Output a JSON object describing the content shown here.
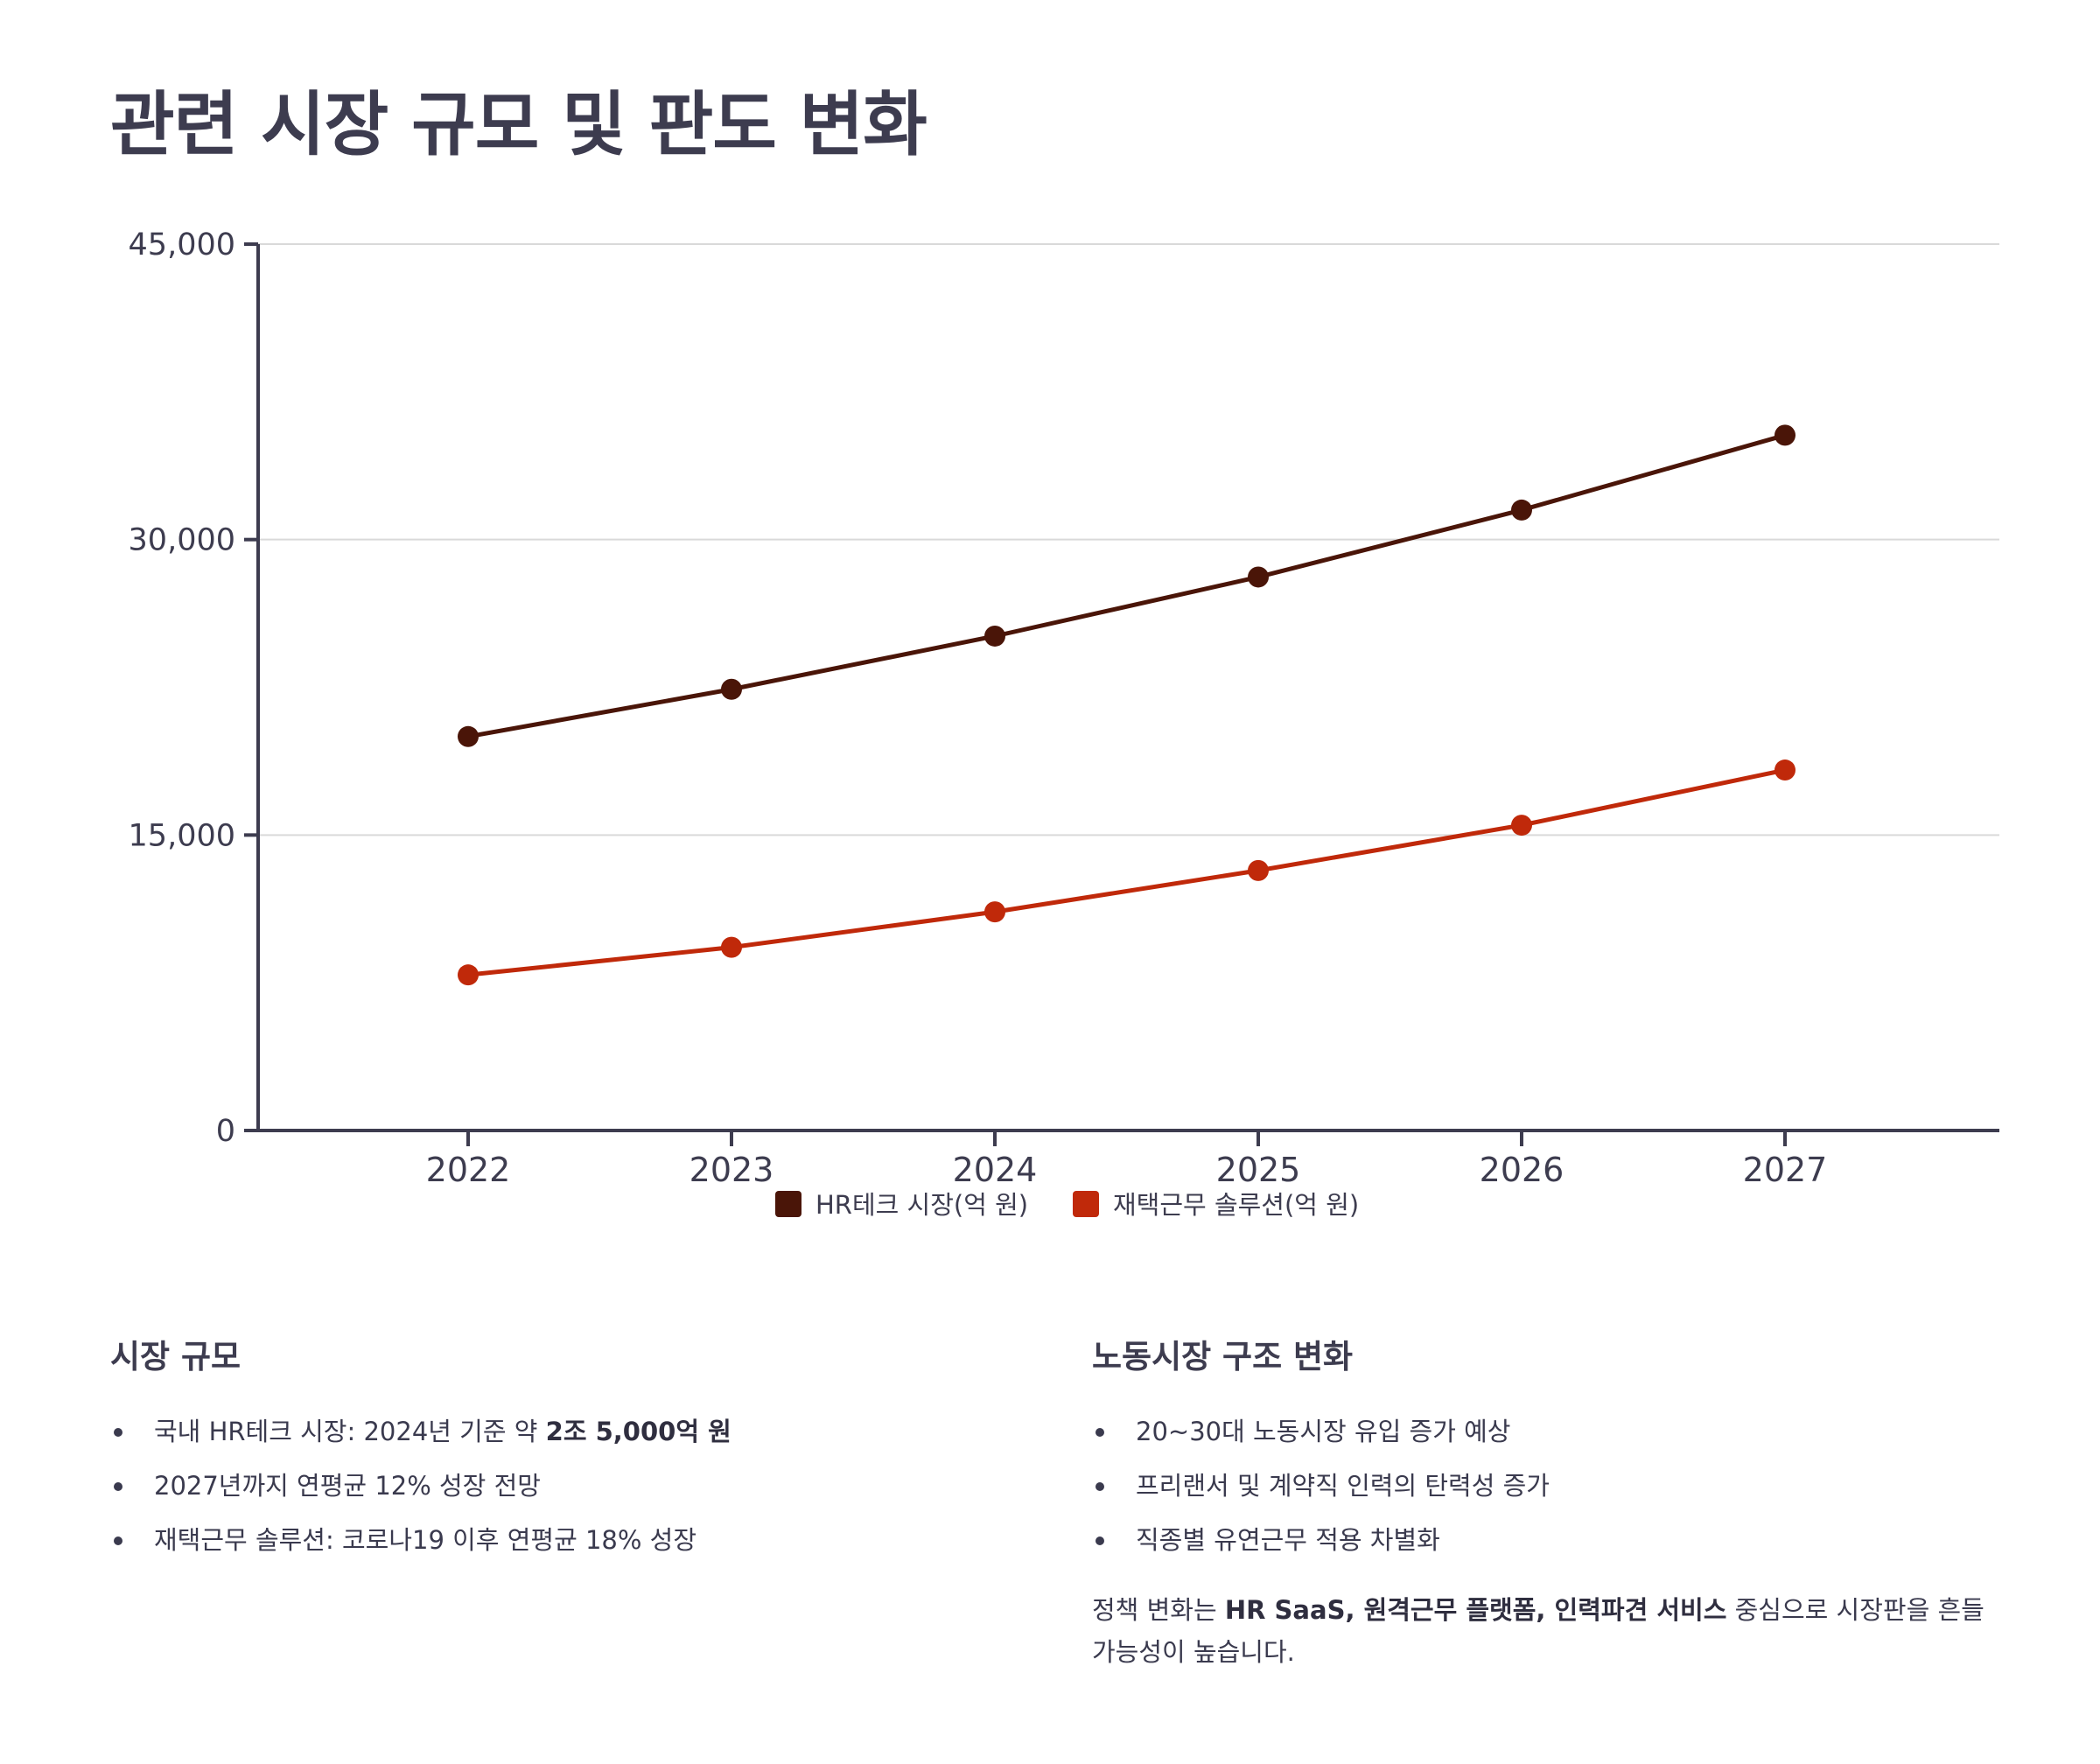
{
  "title": "관련 시장 규모 및 판도 변화",
  "colors": {
    "hrtech": "#4a1508",
    "remote": "#c0290a",
    "axis": "#3d3c4f",
    "grid": "#d9d9d9",
    "text": "#3a3a4e"
  },
  "chart_data": {
    "type": "line",
    "categories": [
      "2022",
      "2023",
      "2024",
      "2025",
      "2026",
      "2027"
    ],
    "series": [
      {
        "name": "HR테크 시장(억 원)",
        "values": [
          20000,
          22400,
          25100,
          28100,
          31500,
          35300
        ],
        "color": "#4a1508"
      },
      {
        "name": "재택근무 솔루션(억 원)",
        "values": [
          7900,
          9300,
          11100,
          13200,
          15500,
          18300
        ],
        "color": "#c0290a"
      }
    ],
    "ylim": [
      0,
      45000
    ],
    "yticks": [
      0,
      15000,
      30000,
      45000
    ],
    "ytick_labels": [
      "0",
      "15,000",
      "30,000",
      "45,000"
    ],
    "grid": true,
    "legend_position": "bottom-center"
  },
  "left_section": {
    "heading": "시장 규모",
    "items": [
      {
        "prefix": "국내 HR테크 시장: 2024년 기준 약 ",
        "bold": "2조 5,000억 원",
        "suffix": ""
      },
      {
        "prefix": "2027년까지 연평균 12% 성장 전망",
        "bold": "",
        "suffix": ""
      },
      {
        "prefix": "재택근무 솔루션: 코로나19 이후 연평균 18% 성장",
        "bold": "",
        "suffix": ""
      }
    ]
  },
  "right_section": {
    "heading": "노동시장 구조 변화",
    "items": [
      {
        "prefix": "20~30대 노동시장 유입 증가 예상",
        "bold": "",
        "suffix": ""
      },
      {
        "prefix": "프리랜서 및 계약직 인력의 탄력성 증가",
        "bold": "",
        "suffix": ""
      },
      {
        "prefix": "직종별 유연근무 적용 차별화",
        "bold": "",
        "suffix": ""
      }
    ],
    "note": {
      "prefix": "정책 변화는 ",
      "bold": "HR SaaS, 원격근무 플랫폼, 인력파견 서비스",
      "suffix": " 중심으로 시장판을 흔들 가능성이 높습니다."
    }
  }
}
